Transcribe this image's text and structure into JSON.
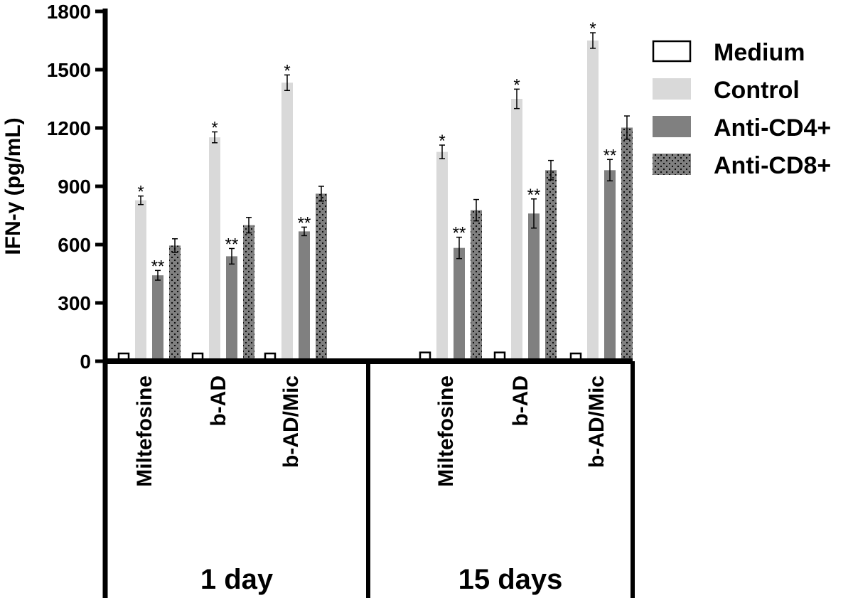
{
  "chart_data": {
    "type": "bar",
    "ylabel": "IFN-γ (pg/mL)",
    "ylim": [
      0,
      1800
    ],
    "yticks": [
      "0",
      "300",
      "600",
      "900",
      "1200",
      "1500",
      "1800"
    ],
    "legend_position": "top-right",
    "groups": [
      {
        "label": "1 day",
        "categories": [
          {
            "label": "Miltefosine",
            "values": [
              40,
              828,
              442,
              595
            ],
            "errors": [
              0,
              22,
              25,
              35
            ],
            "annotations": [
              "",
              "*",
              "**",
              ""
            ]
          },
          {
            "label": "b-AD",
            "values": [
              40,
              1152,
              540,
              700
            ],
            "errors": [
              0,
              28,
              40,
              40
            ],
            "annotations": [
              "",
              "*",
              "**",
              ""
            ]
          },
          {
            "label": "b-AD/Mic",
            "values": [
              40,
              1433,
              668,
              862
            ],
            "errors": [
              0,
              40,
              22,
              38
            ],
            "annotations": [
              "",
              "*",
              "**",
              ""
            ]
          }
        ]
      },
      {
        "label": "15 days",
        "categories": [
          {
            "label": "Miltefosine",
            "values": [
              45,
              1077,
              583,
              777
            ],
            "errors": [
              0,
              35,
              55,
              55
            ],
            "annotations": [
              "",
              "*",
              "**",
              ""
            ]
          },
          {
            "label": "b-AD",
            "values": [
              45,
              1350,
              760,
              983
            ],
            "errors": [
              0,
              50,
              75,
              50
            ],
            "annotations": [
              "",
              "*",
              "**",
              ""
            ]
          },
          {
            "label": "b-AD/Mic",
            "values": [
              40,
              1650,
              983,
              1202
            ],
            "errors": [
              0,
              40,
              55,
              60
            ],
            "annotations": [
              "",
              "*",
              "**",
              ""
            ]
          }
        ]
      }
    ],
    "series": [
      {
        "name": "Medium",
        "fill": "#ffffff",
        "pattern": "none"
      },
      {
        "name": "Control",
        "fill": "#d9d9d9",
        "pattern": "none"
      },
      {
        "name": "Anti-CD4+",
        "fill": "#808080",
        "pattern": "none"
      },
      {
        "name": "Anti-CD8+",
        "fill": "#808080",
        "pattern": "dots"
      }
    ]
  }
}
